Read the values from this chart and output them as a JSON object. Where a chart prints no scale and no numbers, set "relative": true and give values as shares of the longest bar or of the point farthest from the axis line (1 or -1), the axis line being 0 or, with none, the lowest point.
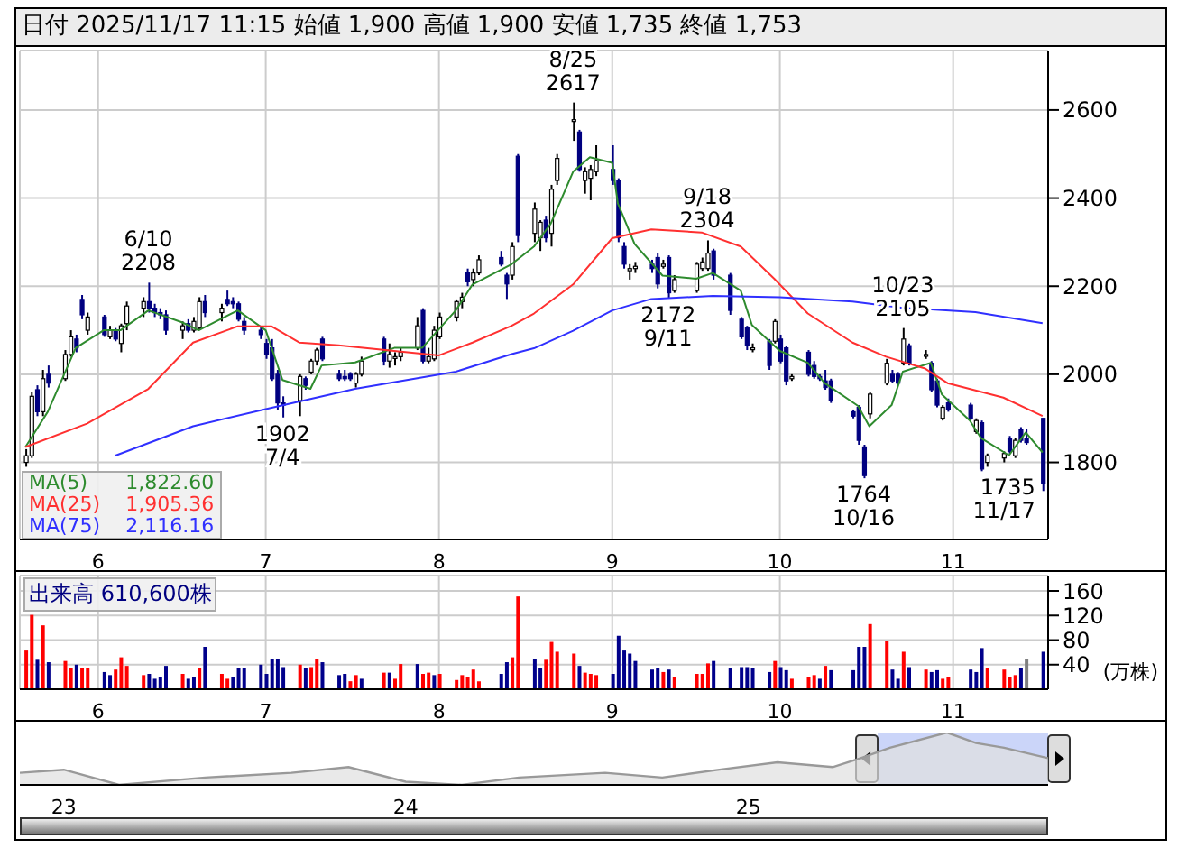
{
  "chart_data": [
    {
      "type": "candlestick",
      "title": "日付 2025/11/17 11:15 始値 1,900 高値 1,900 安値 1,735 終値 1,753",
      "x": [
        "2025-05-19",
        "2025-05-20",
        "2025-05-21",
        "2025-05-22",
        "2025-05-23",
        "2025-05-26",
        "2025-05-27",
        "2025-05-28",
        "2025-05-29",
        "2025-05-30",
        "2025-06-02",
        "2025-06-03",
        "2025-06-04",
        "2025-06-05",
        "2025-06-06",
        "2025-06-09",
        "2025-06-10",
        "2025-06-11",
        "2025-06-12",
        "2025-06-13",
        "2025-06-16",
        "2025-06-17",
        "2025-06-18",
        "2025-06-19",
        "2025-06-20",
        "2025-06-23",
        "2025-06-24",
        "2025-06-25",
        "2025-06-26",
        "2025-06-27",
        "2025-06-30",
        "2025-07-01",
        "2025-07-02",
        "2025-07-03",
        "2025-07-04",
        "2025-07-07",
        "2025-07-08",
        "2025-07-09",
        "2025-07-10",
        "2025-07-11",
        "2025-07-14",
        "2025-07-15",
        "2025-07-16",
        "2025-07-17",
        "2025-07-18",
        "2025-07-22",
        "2025-07-23",
        "2025-07-24",
        "2025-07-25",
        "2025-07-28",
        "2025-07-29",
        "2025-07-30",
        "2025-07-31",
        "2025-08-01",
        "2025-08-04",
        "2025-08-05",
        "2025-08-06",
        "2025-08-07",
        "2025-08-08",
        "2025-08-12",
        "2025-08-13",
        "2025-08-14",
        "2025-08-15",
        "2025-08-18",
        "2025-08-19",
        "2025-08-20",
        "2025-08-21",
        "2025-08-22",
        "2025-08-25",
        "2025-08-26",
        "2025-08-27",
        "2025-08-28",
        "2025-08-29",
        "2025-09-01",
        "2025-09-02",
        "2025-09-03",
        "2025-09-04",
        "2025-09-05",
        "2025-09-08",
        "2025-09-09",
        "2025-09-10",
        "2025-09-11",
        "2025-09-12",
        "2025-09-16",
        "2025-09-17",
        "2025-09-18",
        "2025-09-19",
        "2025-09-22",
        "2025-09-24",
        "2025-09-25",
        "2025-09-26",
        "2025-09-29",
        "2025-09-30",
        "2025-10-01",
        "2025-10-02",
        "2025-10-03",
        "2025-10-06",
        "2025-10-07",
        "2025-10-08",
        "2025-10-09",
        "2025-10-10",
        "2025-10-14",
        "2025-10-15",
        "2025-10-16",
        "2025-10-17",
        "2025-10-20",
        "2025-10-21",
        "2025-10-22",
        "2025-10-23",
        "2025-10-24",
        "2025-10-27",
        "2025-10-28",
        "2025-10-29",
        "2025-10-30",
        "2025-10-31",
        "2025-11-04",
        "2025-11-05",
        "2025-11-06",
        "2025-11-07",
        "2025-11-10",
        "2025-11-11",
        "2025-11-12",
        "2025-11-13",
        "2025-11-14",
        "2025-11-17"
      ],
      "ohlc": [
        [
          1800,
          1830,
          1790,
          1815
        ],
        [
          1815,
          1960,
          1810,
          1950
        ],
        [
          1965,
          1975,
          1905,
          1915
        ],
        [
          1915,
          2010,
          1905,
          1990
        ],
        [
          2000,
          2020,
          1970,
          1980
        ],
        [
          1990,
          2055,
          1985,
          2045
        ],
        [
          2045,
          2100,
          2040,
          2085
        ],
        [
          2080,
          2090,
          2050,
          2060
        ],
        [
          2170,
          2180,
          2125,
          2135
        ],
        [
          2100,
          2140,
          2090,
          2130
        ],
        [
          2130,
          2135,
          2085,
          2090
        ],
        [
          2085,
          2110,
          2080,
          2100
        ],
        [
          2100,
          2105,
          2075,
          2080
        ],
        [
          2070,
          2115,
          2050,
          2110
        ],
        [
          2115,
          2165,
          2100,
          2155
        ],
        [
          2150,
          2175,
          2130,
          2165
        ],
        [
          2165,
          2208,
          2140,
          2150
        ],
        [
          2150,
          2160,
          2130,
          2140
        ],
        [
          2140,
          2150,
          2125,
          2135
        ],
        [
          2135,
          2145,
          2090,
          2100
        ],
        [
          2100,
          2120,
          2080,
          2110
        ],
        [
          2115,
          2125,
          2095,
          2100
        ],
        [
          2100,
          2130,
          2095,
          2120
        ],
        [
          2105,
          2175,
          2100,
          2165
        ],
        [
          2165,
          2180,
          2130,
          2140
        ],
        [
          2140,
          2160,
          2120,
          2150
        ],
        [
          2170,
          2190,
          2155,
          2160
        ],
        [
          2165,
          2175,
          2150,
          2160
        ],
        [
          2160,
          2165,
          2120,
          2125
        ],
        [
          2120,
          2130,
          2090,
          2100
        ],
        [
          2100,
          2110,
          2080,
          2090
        ],
        [
          2070,
          2080,
          2035,
          2045
        ],
        [
          2060,
          2080,
          1985,
          1990
        ],
        [
          2000,
          2010,
          1920,
          1935
        ],
        [
          1935,
          1950,
          1902,
          1930
        ],
        [
          1940,
          2000,
          1905,
          1995
        ],
        [
          1990,
          1995,
          1965,
          1975
        ],
        [
          2005,
          2035,
          2000,
          2030
        ],
        [
          2030,
          2060,
          2020,
          2055
        ],
        [
          2080,
          2085,
          2030,
          2035
        ],
        [
          2000,
          2010,
          1985,
          1990
        ],
        [
          1995,
          2010,
          1985,
          1990
        ],
        [
          2000,
          2005,
          1985,
          1990
        ],
        [
          1980,
          2005,
          1970,
          2000
        ],
        [
          2000,
          2040,
          1995,
          2030
        ],
        [
          2080,
          2085,
          2020,
          2030
        ],
        [
          2030,
          2070,
          2015,
          2045
        ],
        [
          2040,
          2050,
          2020,
          2040
        ],
        [
          2040,
          2060,
          2030,
          2050
        ],
        [
          2060,
          2130,
          2055,
          2110
        ],
        [
          2145,
          2150,
          2025,
          2030
        ],
        [
          2030,
          2060,
          2025,
          2040
        ],
        [
          2035,
          2110,
          2030,
          2100
        ],
        [
          2085,
          2140,
          2080,
          2130
        ],
        [
          2130,
          2170,
          2120,
          2165
        ],
        [
          2165,
          2185,
          2150,
          2175
        ],
        [
          2230,
          2240,
          2200,
          2210
        ],
        [
          2215,
          2240,
          2200,
          2230
        ],
        [
          2230,
          2270,
          2225,
          2260
        ],
        [
          2265,
          2280,
          2245,
          2250
        ],
        [
          2225,
          2230,
          2171,
          2205
        ],
        [
          2225,
          2300,
          2215,
          2290
        ],
        [
          2495,
          2500,
          2300,
          2315
        ],
        [
          2320,
          2390,
          2300,
          2375
        ],
        [
          2310,
          2350,
          2280,
          2345
        ],
        [
          2350,
          2360,
          2300,
          2310
        ],
        [
          2320,
          2430,
          2290,
          2420
        ],
        [
          2440,
          2500,
          2430,
          2490
        ],
        [
          2575,
          2617,
          2530,
          2578
        ],
        [
          2550,
          2555,
          2460,
          2465
        ],
        [
          2440,
          2470,
          2410,
          2460
        ],
        [
          2445,
          2475,
          2395,
          2465
        ],
        [
          2460,
          2520,
          2450,
          2485
        ],
        [
          2465,
          2520,
          2430,
          2440
        ],
        [
          2440,
          2445,
          2300,
          2310
        ],
        [
          2290,
          2300,
          2240,
          2250
        ],
        [
          2235,
          2250,
          2215,
          2240
        ],
        [
          2240,
          2255,
          2230,
          2245
        ],
        [
          2250,
          2260,
          2230,
          2240
        ],
        [
          2265,
          2275,
          2195,
          2205
        ],
        [
          2245,
          2260,
          2240,
          2250
        ],
        [
          2265,
          2270,
          2172,
          2185
        ],
        [
          2190,
          2225,
          2185,
          2215
        ],
        [
          2190,
          2255,
          2185,
          2250
        ],
        [
          2240,
          2265,
          2235,
          2255
        ],
        [
          2240,
          2304,
          2235,
          2275
        ],
        [
          2280,
          2285,
          2215,
          2225
        ],
        [
          2225,
          2230,
          2135,
          2145
        ],
        [
          2125,
          2130,
          2080,
          2085
        ],
        [
          2105,
          2110,
          2055,
          2065
        ],
        [
          2060,
          2070,
          2050,
          2060
        ],
        [
          2075,
          2080,
          2010,
          2020
        ],
        [
          2075,
          2125,
          2070,
          2120
        ],
        [
          2080,
          2090,
          2025,
          2030
        ],
        [
          2060,
          2065,
          1975,
          1985
        ],
        [
          1990,
          2000,
          1985,
          1995
        ],
        [
          2050,
          2055,
          1995,
          2000
        ],
        [
          2020,
          2030,
          1990,
          1995
        ],
        [
          1995,
          2000,
          1985,
          1990
        ],
        [
          1985,
          2010,
          1965,
          1970
        ],
        [
          1985,
          1990,
          1935,
          1940
        ],
        [
          1915,
          1920,
          1900,
          1905
        ],
        [
          1925,
          1930,
          1840,
          1850
        ],
        [
          1835,
          1840,
          1764,
          1770
        ],
        [
          1910,
          1960,
          1900,
          1955
        ],
        [
          1980,
          2035,
          1975,
          2025
        ],
        [
          2000,
          2010,
          1980,
          1985
        ],
        [
          2000,
          2005,
          1975,
          1980
        ],
        [
          2025,
          2105,
          2020,
          2080
        ],
        [
          2065,
          2070,
          2020,
          2025
        ],
        [
          2045,
          2055,
          2035,
          2045
        ],
        [
          2025,
          2030,
          1960,
          1965
        ],
        [
          1985,
          1990,
          1925,
          1930
        ],
        [
          1900,
          1930,
          1895,
          1925
        ],
        [
          1935,
          1945,
          1915,
          1920
        ],
        [
          1930,
          1935,
          1895,
          1900
        ],
        [
          1870,
          1900,
          1865,
          1895
        ],
        [
          1890,
          1895,
          1780,
          1785
        ],
        [
          1800,
          1820,
          1790,
          1815
        ],
        [
          1810,
          1825,
          1800,
          1820
        ],
        [
          1855,
          1860,
          1820,
          1825
        ],
        [
          1815,
          1855,
          1810,
          1850
        ],
        [
          1875,
          1880,
          1845,
          1850
        ],
        [
          1855,
          1875,
          1840,
          1845
        ],
        [
          1900,
          1900,
          1735,
          1753
        ]
      ],
      "series": [
        {
          "name": "MA(5)",
          "type": "line",
          "color": "#2e8b2e",
          "x": [
            "2025-05-19",
            "2025-05-23",
            "2025-05-28",
            "2025-06-02",
            "2025-06-05",
            "2025-06-10",
            "2025-06-16",
            "2025-06-19",
            "2025-06-26",
            "2025-07-01",
            "2025-07-04",
            "2025-07-09",
            "2025-07-11",
            "2025-07-17",
            "2025-07-24",
            "2025-07-29",
            "2025-08-04",
            "2025-08-07",
            "2025-08-14",
            "2025-08-18",
            "2025-08-21",
            "2025-08-25",
            "2025-08-28",
            "2025-09-01",
            "2025-09-02",
            "2025-09-05",
            "2025-09-10",
            "2025-09-16",
            "2025-09-19",
            "2025-09-24",
            "2025-09-26",
            "2025-10-01",
            "2025-10-06",
            "2025-10-09",
            "2025-10-15",
            "2025-10-17",
            "2025-10-21",
            "2025-10-23",
            "2025-10-28",
            "2025-10-30",
            "2025-11-04",
            "2025-11-06",
            "2025-11-11",
            "2025-11-14",
            "2025-11-17"
          ],
          "values": [
            1835,
            1915,
            2060,
            2100,
            2100,
            2145,
            2118,
            2100,
            2145,
            2100,
            1987,
            1967,
            2020,
            2027,
            2060,
            2060,
            2145,
            2204,
            2250,
            2290,
            2342,
            2460,
            2493,
            2480,
            2388,
            2296,
            2224,
            2217,
            2230,
            2190,
            2112,
            2053,
            2026,
            1980,
            1928,
            1882,
            1930,
            2006,
            2026,
            1954,
            1895,
            1855,
            1816,
            1868,
            1822.6
          ]
        },
        {
          "name": "MA(25)",
          "type": "line",
          "color": "#ff3030",
          "x": [
            "2025-05-19",
            "2025-05-30",
            "2025-06-10",
            "2025-06-18",
            "2025-06-26",
            "2025-07-02",
            "2025-07-07",
            "2025-07-14",
            "2025-07-24",
            "2025-08-01",
            "2025-08-07",
            "2025-08-14",
            "2025-08-18",
            "2025-08-25",
            "2025-09-01",
            "2025-09-08",
            "2025-09-17",
            "2025-09-24",
            "2025-09-30",
            "2025-10-06",
            "2025-10-14",
            "2025-10-20",
            "2025-10-27",
            "2025-10-31",
            "2025-11-10",
            "2025-11-17"
          ],
          "values": [
            1835,
            1888,
            1967,
            2072,
            2109,
            2109,
            2072,
            2066,
            2053,
            2043,
            2072,
            2110,
            2138,
            2204,
            2309,
            2329,
            2322,
            2290,
            2217,
            2138,
            2072,
            2040,
            2013,
            1980,
            1947,
            1905.36
          ]
        },
        {
          "name": "MA(75)",
          "type": "line",
          "color": "#3030ff",
          "x": [
            "2025-06-04",
            "2025-06-18",
            "2025-07-01",
            "2025-07-17",
            "2025-08-04",
            "2025-08-14",
            "2025-08-18",
            "2025-08-25",
            "2025-09-01",
            "2025-09-08",
            "2025-09-19",
            "2025-10-01",
            "2025-10-14",
            "2025-10-23",
            "2025-11-05",
            "2025-11-17"
          ],
          "values": [
            1815,
            1882,
            1921,
            1967,
            2006,
            2046,
            2059,
            2099,
            2145,
            2171,
            2178,
            2175,
            2165,
            2151,
            2141,
            2116.16
          ]
        }
      ],
      "xlim": [
        "2025-05-18",
        "2025-11-18"
      ],
      "ylim": [
        1625,
        2735
      ],
      "yticks": [
        1800,
        2000,
        2200,
        2400,
        2600
      ],
      "xticks": [
        {
          "value": "2025-06-01",
          "label": "6"
        },
        {
          "value": "2025-07-01",
          "label": "7"
        },
        {
          "value": "2025-08-01",
          "label": "8"
        },
        {
          "value": "2025-09-01",
          "label": "9"
        },
        {
          "value": "2025-10-01",
          "label": "10"
        },
        {
          "value": "2025-11-01",
          "label": "11"
        }
      ],
      "grid": true,
      "legend": "bottom left",
      "annotations": [
        "1,822.60",
        "1,905.36",
        "2,116.16",
        {
          "text": "6/10 2208",
          "x": "2025-06-10",
          "y": 2208
        },
        {
          "text": "1902 7/4",
          "x": "2025-07-04",
          "y": 1902
        },
        {
          "text": "8/25 2617",
          "x": "2025-08-25",
          "y": 2617
        },
        {
          "text": "2172 9/11",
          "x": "2025-09-11",
          "y": 2172
        },
        {
          "text": "9/18 2304",
          "x": "2025-09-18",
          "y": 2304
        },
        {
          "text": "1764 10/16",
          "x": "2025-10-16",
          "y": 1764
        },
        {
          "text": "10/23 2105",
          "x": "2025-10-23",
          "y": 2105
        },
        {
          "text": "1735 11/17",
          "x": "2025-11-17",
          "y": 1735
        }
      ]
    },
    {
      "type": "bar",
      "title": "出来高 610,600株",
      "ylabel": "(万株)",
      "x": [
        "2025-05-19",
        "2025-05-20",
        "2025-05-21",
        "2025-05-22",
        "2025-05-23",
        "2025-05-26",
        "2025-05-27",
        "2025-05-28",
        "2025-05-29",
        "2025-05-30",
        "2025-06-02",
        "2025-06-03",
        "2025-06-04",
        "2025-06-05",
        "2025-06-06",
        "2025-06-09",
        "2025-06-10",
        "2025-06-11",
        "2025-06-12",
        "2025-06-13",
        "2025-06-16",
        "2025-06-17",
        "2025-06-18",
        "2025-06-19",
        "2025-06-20",
        "2025-06-23",
        "2025-06-24",
        "2025-06-25",
        "2025-06-26",
        "2025-06-27",
        "2025-06-30",
        "2025-07-01",
        "2025-07-02",
        "2025-07-03",
        "2025-07-04",
        "2025-07-07",
        "2025-07-08",
        "2025-07-09",
        "2025-07-10",
        "2025-07-11",
        "2025-07-14",
        "2025-07-15",
        "2025-07-16",
        "2025-07-17",
        "2025-07-18",
        "2025-07-22",
        "2025-07-23",
        "2025-07-24",
        "2025-07-25",
        "2025-07-28",
        "2025-07-29",
        "2025-07-30",
        "2025-07-31",
        "2025-08-01",
        "2025-08-04",
        "2025-08-05",
        "2025-08-06",
        "2025-08-07",
        "2025-08-08",
        "2025-08-12",
        "2025-08-13",
        "2025-08-14",
        "2025-08-15",
        "2025-08-18",
        "2025-08-19",
        "2025-08-20",
        "2025-08-21",
        "2025-08-22",
        "2025-08-25",
        "2025-08-26",
        "2025-08-27",
        "2025-08-28",
        "2025-08-29",
        "2025-09-01",
        "2025-09-02",
        "2025-09-03",
        "2025-09-04",
        "2025-09-05",
        "2025-09-08",
        "2025-09-09",
        "2025-09-10",
        "2025-09-11",
        "2025-09-12",
        "2025-09-16",
        "2025-09-17",
        "2025-09-18",
        "2025-09-19",
        "2025-09-22",
        "2025-09-24",
        "2025-09-25",
        "2025-09-26",
        "2025-09-29",
        "2025-09-30",
        "2025-10-01",
        "2025-10-02",
        "2025-10-03",
        "2025-10-06",
        "2025-10-07",
        "2025-10-08",
        "2025-10-09",
        "2025-10-10",
        "2025-10-14",
        "2025-10-15",
        "2025-10-16",
        "2025-10-17",
        "2025-10-20",
        "2025-10-21",
        "2025-10-22",
        "2025-10-23",
        "2025-10-24",
        "2025-10-27",
        "2025-10-28",
        "2025-10-29",
        "2025-10-30",
        "2025-10-31",
        "2025-11-04",
        "2025-11-05",
        "2025-11-06",
        "2025-11-07",
        "2025-11-10",
        "2025-11-11",
        "2025-11-12",
        "2025-11-13",
        "2025-11-14",
        "2025-11-17"
      ],
      "values": [
        63,
        121,
        48,
        104,
        44,
        46,
        34,
        40,
        34,
        34,
        28,
        23,
        32,
        52,
        38,
        23,
        25,
        17,
        20,
        38,
        25,
        17,
        20,
        34,
        69,
        25,
        17,
        20,
        34,
        34,
        40,
        25,
        49,
        49,
        36,
        40,
        34,
        36,
        49,
        44,
        23,
        25,
        13,
        23,
        17,
        27,
        27,
        17,
        41,
        41,
        25,
        27,
        23,
        25,
        15,
        23,
        20,
        32,
        13,
        25,
        44,
        52,
        151,
        49,
        34,
        48,
        77,
        61,
        58,
        38,
        27,
        25,
        23,
        25,
        87,
        63,
        58,
        46,
        32,
        34,
        28,
        32,
        20,
        25,
        25,
        42,
        46,
        34,
        36,
        36,
        34,
        28,
        46,
        36,
        31,
        17,
        20,
        23,
        17,
        38,
        31,
        31,
        69,
        69,
        106,
        78,
        32,
        17,
        61,
        36,
        32,
        28,
        31,
        17,
        20,
        32,
        28,
        67,
        34,
        32,
        20,
        23,
        34,
        49,
        61
      ],
      "colors": [
        "#ff0000",
        "#ff0000",
        "#00008b",
        "#ff0000",
        "#00008b",
        "#ff0000",
        "#ff0000",
        "#00008b",
        "#ff0000",
        "#ff0000",
        "#00008b",
        "#00008b",
        "#ff0000",
        "#ff0000",
        "#ff0000",
        "#ff0000",
        "#00008b",
        "#00008b",
        "#00008b",
        "#00008b",
        "#ff0000",
        "#00008b",
        "#00008b",
        "#ff0000",
        "#00008b",
        "#ff0000",
        "#ff0000",
        "#00008b",
        "#00008b",
        "#00008b",
        "#00008b",
        "#00008b",
        "#00008b",
        "#00008b",
        "#00008b",
        "#ff0000",
        "#00008b",
        "#ff0000",
        "#ff0000",
        "#00008b",
        "#00008b",
        "#00008b",
        "#ff0000",
        "#ff0000",
        "#00008b",
        "#ff0000",
        "#00008b",
        "#ff0000",
        "#ff0000",
        "#00008b",
        "#ff0000",
        "#ff0000",
        "#00008b",
        "#ff0000",
        "#ff0000",
        "#ff0000",
        "#ff0000",
        "#ff0000",
        "#ff0000",
        "#00008b",
        "#00008b",
        "#ff0000",
        "#ff0000",
        "#00008b",
        "#00008b",
        "#ff0000",
        "#ff0000",
        "#ff0000",
        "#ff0000",
        "#00008b",
        "#ff0000",
        "#ff0000",
        "#ff0000",
        "#00008b",
        "#00008b",
        "#00008b",
        "#00008b",
        "#00008b",
        "#00008b",
        "#00008b",
        "#ff0000",
        "#00008b",
        "#ff0000",
        "#ff0000",
        "#ff0000",
        "#ff0000",
        "#00008b",
        "#00008b",
        "#00008b",
        "#00008b",
        "#00008b",
        "#00008b",
        "#ff0000",
        "#00008b",
        "#00008b",
        "#ff0000",
        "#ff0000",
        "#ff0000",
        "#00008b",
        "#ff0000",
        "#00008b",
        "#00008b",
        "#00008b",
        "#00008b",
        "#ff0000",
        "#ff0000",
        "#00008b",
        "#00008b",
        "#ff0000",
        "#00008b",
        "#ff0000",
        "#00008b",
        "#00008b",
        "#ff0000",
        "#ff0000",
        "#00008b",
        "#00008b",
        "#00008b",
        "#ff0000",
        "#ff0000",
        "#ff0000",
        "#ff0000",
        "#00008b",
        "#808080",
        "#00008b"
      ],
      "xlim": [
        "2025-05-18",
        "2025-11-18"
      ],
      "ylim": [
        0,
        185
      ],
      "yticks": [
        40,
        80,
        120,
        160
      ],
      "xticks": [
        {
          "value": "2025-06-01",
          "label": "6"
        },
        {
          "value": "2025-07-01",
          "label": "7"
        },
        {
          "value": "2025-08-01",
          "label": "8"
        },
        {
          "value": "2025-09-01",
          "label": "9"
        },
        {
          "value": "2025-10-01",
          "label": "10"
        },
        {
          "value": "2025-11-01",
          "label": "11"
        }
      ],
      "grid": true
    },
    {
      "type": "area",
      "relative": true,
      "x": [
        "2022-11-15",
        "2023-01-01",
        "2023-03-01",
        "2023-06-01",
        "2023-09-01",
        "2023-11-01",
        "2024-01-01",
        "2024-03-01",
        "2024-05-01",
        "2024-08-01",
        "2024-10-01",
        "2024-12-01",
        "2025-02-01",
        "2025-04-01",
        "2025-05-01",
        "2025-06-01",
        "2025-08-01",
        "2025-09-01",
        "2025-10-01",
        "2025-11-17"
      ],
      "series": [
        {
          "color": "#999999",
          "values": [
            0.23,
            0.29,
            0,
            0.14,
            0.23,
            0.34,
            0.06,
            0,
            0.14,
            0.23,
            0.14,
            0.29,
            0.43,
            0.34,
            0.51,
            0.71,
            1,
            0.8,
            0.71,
            0.51
          ]
        }
      ],
      "xlim": [
        "2022-11-15",
        "2025-11-17"
      ],
      "xticks": [
        {
          "value": "2023-01-01",
          "label": "23"
        },
        {
          "value": "2024-01-01",
          "label": "24"
        },
        {
          "value": "2025-01-01",
          "label": "25"
        }
      ],
      "bands": [
        {
          "axis": "x",
          "from": "2025-05-19",
          "to": "2025-11-17",
          "color": "#a9b9f5"
        }
      ]
    }
  ]
}
